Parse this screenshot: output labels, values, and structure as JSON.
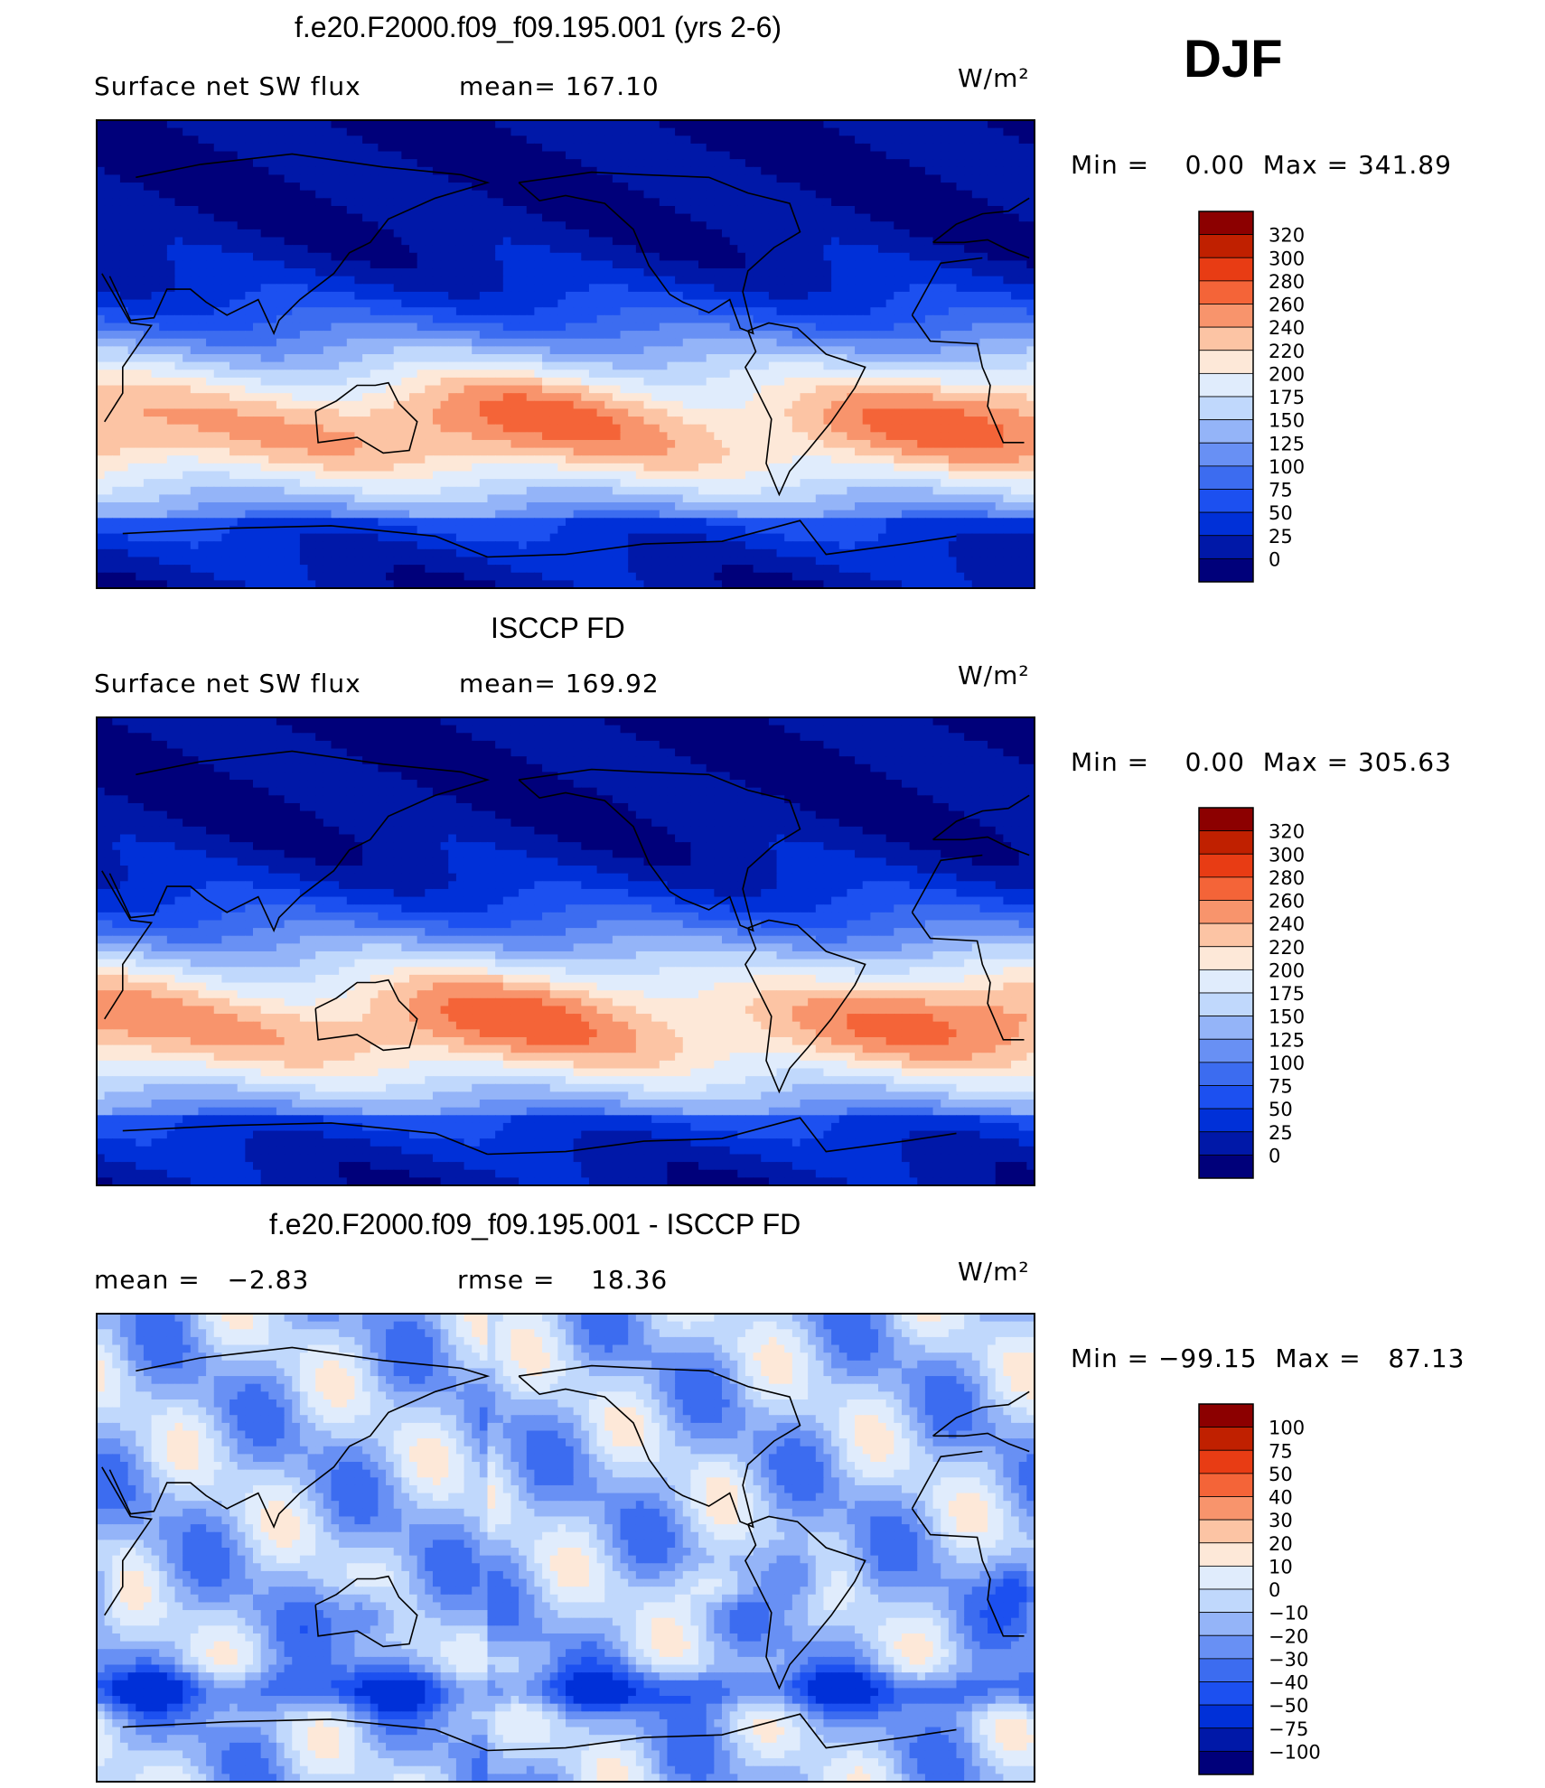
{
  "season": "DJF",
  "panels": [
    {
      "title": "f.e20.F2000.f09_f09.195.001 (yrs 2-6)",
      "left_label": "Surface net SW flux",
      "center_label": "mean= 167.10",
      "units": "W/m²",
      "minmax": "Min =    0.00  Max = 341.89",
      "colorbar_labels": [
        "320",
        "300",
        "280",
        "260",
        "240",
        "220",
        "200",
        "175",
        "150",
        "125",
        "100",
        "75",
        "50",
        "25",
        "0"
      ]
    },
    {
      "title": "ISCCP FD",
      "left_label": "Surface net SW flux",
      "center_label": "mean= 169.92",
      "units": "W/m²",
      "minmax": "Min =    0.00  Max = 305.63",
      "colorbar_labels": [
        "320",
        "300",
        "280",
        "260",
        "240",
        "220",
        "200",
        "175",
        "150",
        "125",
        "100",
        "75",
        "50",
        "25",
        "0"
      ]
    },
    {
      "title": "f.e20.F2000.f09_f09.195.001 - ISCCP FD",
      "left_label": "mean =   −2.83",
      "center_label": "rmse =    18.36",
      "units": "W/m²",
      "minmax": "Min = −99.15  Max =   87.13",
      "colorbar_labels": [
        "100",
        "75",
        "50",
        "40",
        "30",
        "20",
        "10",
        "0",
        "−10",
        "−20",
        "−30",
        "−40",
        "−50",
        "−75",
        "−100"
      ]
    }
  ],
  "chart_data": [
    {
      "type": "heatmap",
      "title": "f.e20.F2000.f09_f09.195.001 (yrs 2-6)",
      "variable": "Surface net SW flux",
      "units": "W/m2",
      "mean": 167.1,
      "min": 0.0,
      "max": 341.89,
      "contour_levels": [
        0,
        25,
        50,
        75,
        100,
        125,
        150,
        175,
        200,
        220,
        240,
        260,
        280,
        300,
        320
      ]
    },
    {
      "type": "heatmap",
      "title": "ISCCP FD",
      "variable": "Surface net SW flux",
      "units": "W/m2",
      "mean": 169.92,
      "min": 0.0,
      "max": 305.63,
      "contour_levels": [
        0,
        25,
        50,
        75,
        100,
        125,
        150,
        175,
        200,
        220,
        240,
        260,
        280,
        300,
        320
      ]
    },
    {
      "type": "heatmap",
      "title": "f.e20.F2000.f09_f09.195.001 - ISCCP FD",
      "units": "W/m2",
      "mean": -2.83,
      "rmse": 18.36,
      "min": -99.15,
      "max": 87.13,
      "contour_levels": [
        -100,
        -75,
        -50,
        -40,
        -30,
        -20,
        -10,
        0,
        10,
        20,
        30,
        40,
        50,
        75,
        100
      ]
    }
  ],
  "colors": {
    "abs_scale": [
      "#00007a",
      "#0018a8",
      "#0030d8",
      "#1c50f0",
      "#3c6cf0",
      "#6890f4",
      "#94b4f8",
      "#c0d8fc",
      "#e0ecfc",
      "#fde8d8",
      "#fcc4a4",
      "#f8946c",
      "#f46438",
      "#e83c14",
      "#c02000",
      "#8c0000"
    ],
    "diff_scale": [
      "#00007a",
      "#0018a8",
      "#0030d8",
      "#1c50f0",
      "#3c6cf0",
      "#6890f4",
      "#94b4f8",
      "#c0d8fc",
      "#e0ecfc",
      "#fde8d8",
      "#fcc4a4",
      "#f8946c",
      "#f46438",
      "#e83c14",
      "#c02000",
      "#8c0000"
    ]
  }
}
